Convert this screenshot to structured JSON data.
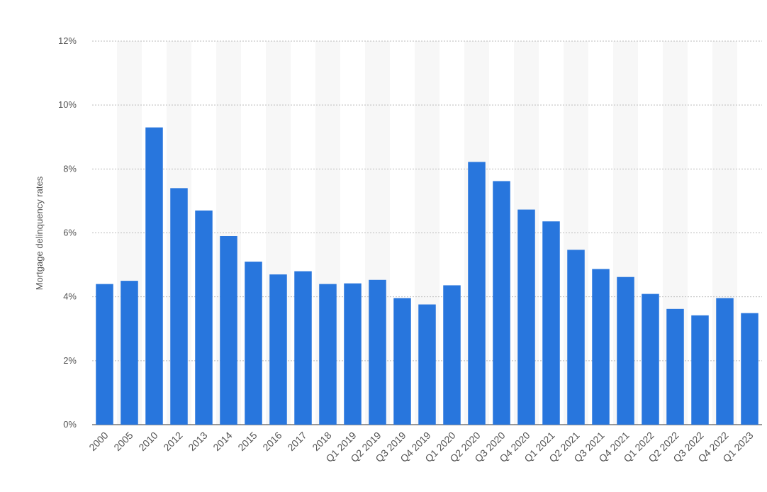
{
  "chart_data": {
    "type": "bar",
    "y_label": "Mortgage delinquency rates",
    "categories": [
      "2000",
      "2005",
      "2010",
      "2012",
      "2013",
      "2014",
      "2015",
      "2016",
      "2017",
      "2018",
      "Q1 2019",
      "Q2 2019",
      "Q3 2019",
      "Q4 2019",
      "Q1 2020",
      "Q2 2020",
      "Q3 2020",
      "Q4 2020",
      "Q1 2021",
      "Q2 2021",
      "Q3 2021",
      "Q4 2021",
      "Q1 2022",
      "Q2 2022",
      "Q3 2022",
      "Q4 2022",
      "Q1 2023"
    ],
    "values": [
      4.4,
      4.5,
      9.3,
      7.4,
      6.7,
      5.9,
      5.1,
      4.7,
      4.8,
      4.4,
      4.42,
      4.53,
      3.96,
      3.76,
      4.36,
      8.22,
      7.62,
      6.73,
      6.36,
      5.47,
      4.87,
      4.62,
      4.09,
      3.62,
      3.42,
      3.96,
      3.49
    ],
    "color": "#2876dd",
    "ylim": [
      0,
      12
    ],
    "yticks": [
      {
        "value": 0,
        "label": "0%"
      },
      {
        "value": 2,
        "label": "2%"
      },
      {
        "value": 4,
        "label": "4%"
      },
      {
        "value": 6,
        "label": "6%"
      },
      {
        "value": 8,
        "label": "8%"
      },
      {
        "value": 10,
        "label": "10%"
      },
      {
        "value": 12,
        "label": "12%"
      }
    ],
    "grid": true
  }
}
